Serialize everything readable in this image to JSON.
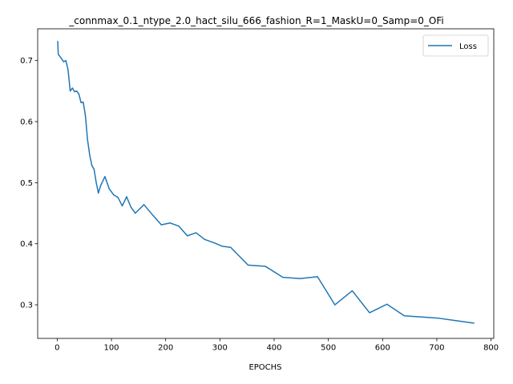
{
  "chart_data": {
    "type": "line",
    "title": "_connmax_0.1_ntype_2.0_hact_silu_666_fashion_R=1_MaskU=0_Samp=0_OFi",
    "xlabel": "EPOCHS",
    "ylabel": "",
    "xlim": [
      -36,
      805
    ],
    "ylim": [
      0.245,
      0.752
    ],
    "xticks": [
      0,
      100,
      200,
      300,
      400,
      500,
      600,
      700,
      800
    ],
    "yticks": [
      0.3,
      0.4,
      0.5,
      0.6,
      0.7
    ],
    "xtick_labels": [
      "0",
      "100",
      "200",
      "300",
      "400",
      "500",
      "600",
      "700",
      "800"
    ],
    "ytick_labels": [
      "0.3",
      "0.4",
      "0.5",
      "0.6",
      "0.7"
    ],
    "legend": {
      "position": "top-right",
      "entries": [
        "Loss"
      ]
    },
    "grid": false,
    "series": [
      {
        "name": "Loss",
        "color": "#1f77b4",
        "x": [
          1,
          2,
          4,
          8,
          12,
          16,
          20,
          24,
          28,
          32,
          36,
          40,
          44,
          48,
          52,
          56,
          60,
          64,
          68,
          72,
          76,
          80,
          88,
          96,
          104,
          112,
          120,
          128,
          136,
          144,
          160,
          176,
          192,
          208,
          224,
          240,
          256,
          272,
          288,
          304,
          320,
          352,
          384,
          416,
          448,
          480,
          512,
          544,
          576,
          608,
          640,
          672,
          704,
          736,
          768
        ],
        "y": [
          0.731,
          0.71,
          0.708,
          0.703,
          0.698,
          0.7,
          0.685,
          0.65,
          0.655,
          0.649,
          0.65,
          0.645,
          0.631,
          0.632,
          0.61,
          0.57,
          0.545,
          0.528,
          0.522,
          0.5,
          0.483,
          0.495,
          0.51,
          0.49,
          0.48,
          0.476,
          0.462,
          0.477,
          0.46,
          0.45,
          0.464,
          0.447,
          0.431,
          0.434,
          0.429,
          0.413,
          0.418,
          0.407,
          0.402,
          0.396,
          0.394,
          0.365,
          0.363,
          0.345,
          0.343,
          0.346,
          0.3,
          0.323,
          0.287,
          0.301,
          0.282,
          0.28,
          0.278,
          0.274,
          0.27
        ]
      }
    ]
  }
}
